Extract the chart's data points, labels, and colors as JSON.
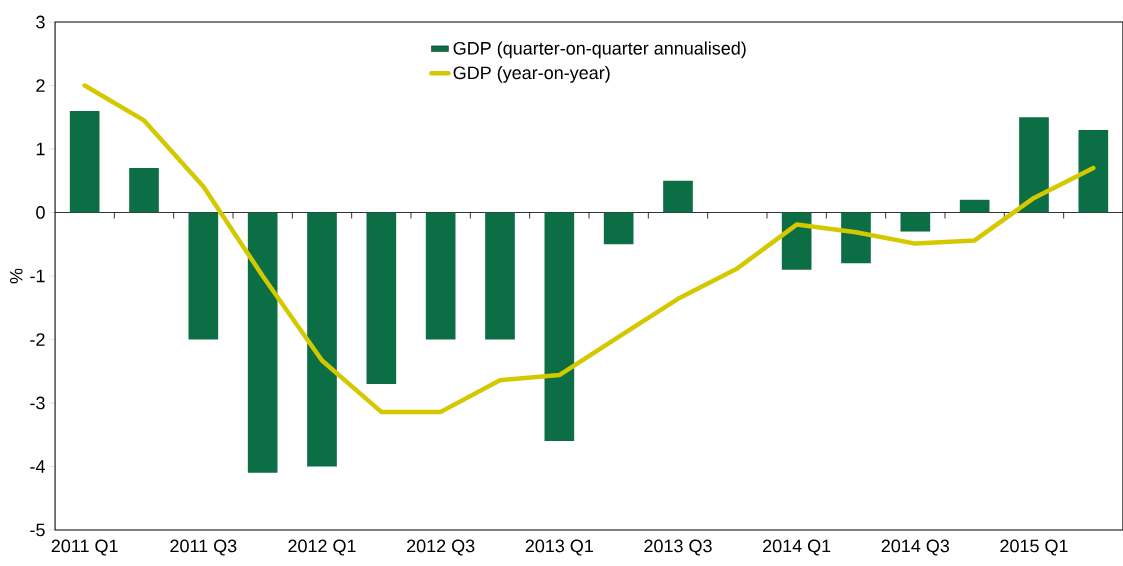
{
  "chart_data": {
    "type": "bar",
    "ylabel": "%",
    "categories": [
      "2011 Q1",
      null,
      "2011 Q3",
      null,
      "2012 Q1",
      null,
      "2012 Q3",
      null,
      "2013 Q1",
      null,
      "2013 Q3",
      null,
      "2014 Q1",
      null,
      "2014 Q3",
      null,
      "2015 Q1",
      null
    ],
    "series": [
      {
        "name": "GDP (quarter-on-quarter annualised)",
        "color": "#0b6e45",
        "values": [
          1.6,
          0.7,
          -2.0,
          -4.1,
          -4.0,
          -2.7,
          -2.0,
          -2.0,
          -3.6,
          -0.5,
          0.5,
          null,
          -0.9,
          -0.8,
          -0.3,
          0.2,
          1.5,
          1.3
        ]
      },
      {
        "name": "GDP (year-on-year)",
        "type": "line",
        "color": "#d4c800",
        "values": [
          2.0,
          1.45,
          0.41,
          -1.0,
          -2.33,
          -3.14,
          -3.14,
          -2.64,
          -2.56,
          -1.96,
          -1.36,
          -0.88,
          -0.19,
          -0.31,
          -0.49,
          -0.44,
          0.23,
          0.7
        ]
      }
    ],
    "ylim": [
      -5,
      3
    ],
    "yticks": [
      -5,
      -4,
      -3,
      -2,
      -1,
      0,
      1,
      2,
      3
    ],
    "ref_lines": [
      {
        "axis": "y",
        "value": 0,
        "color": "#000000"
      }
    ],
    "grid": false,
    "legend": "top"
  }
}
